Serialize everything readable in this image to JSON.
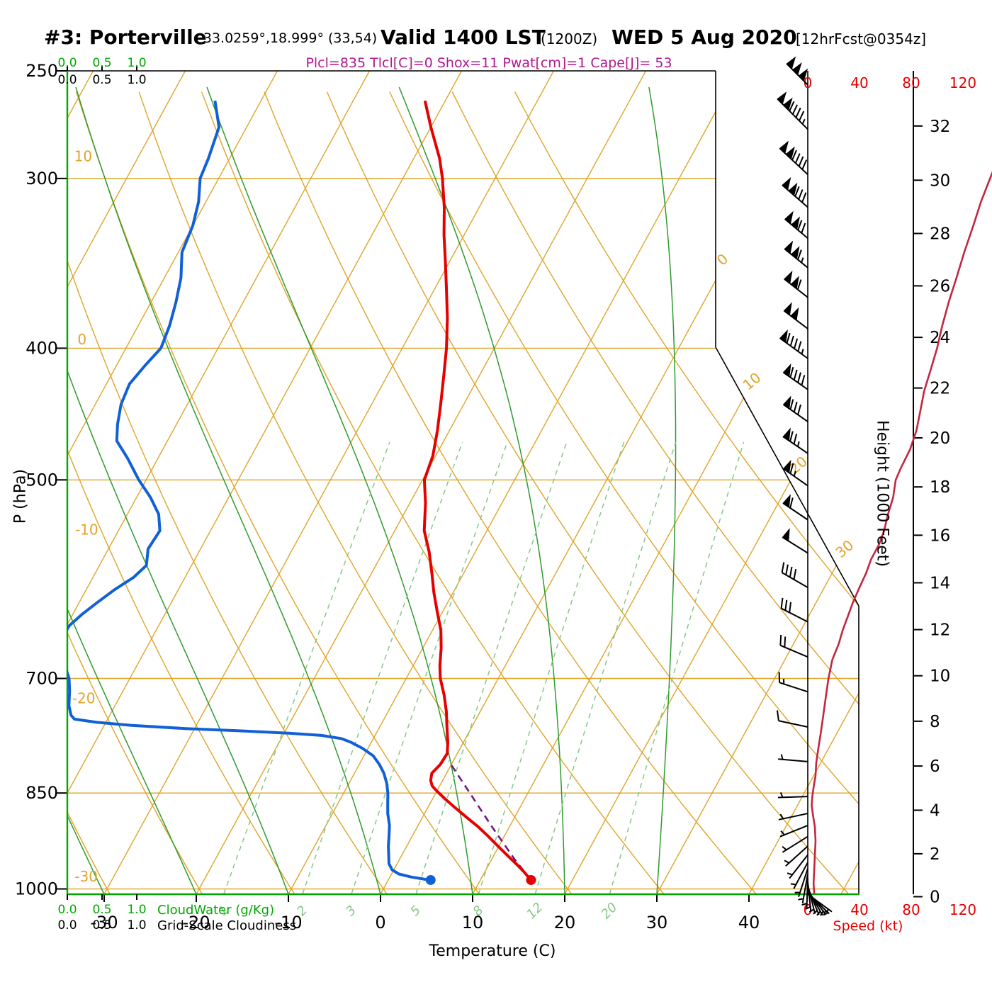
{
  "header": {
    "station": "#3: Porterville",
    "coordinates": "-33.0259°,18.999° (33,54)",
    "valid_time": "Valid 1400 LST",
    "valid_zulu": "(1200Z)",
    "valid_date": "WED 5 Aug 2020",
    "forecast_tag": "[12hrFcst@0354z]",
    "stats_line": "Plcl=835 Tlcl[C]=0 Shox=11 Pwat[cm]=1 Cape[J]= 53"
  },
  "axes": {
    "pressure_title": "P (hPa)",
    "temperature_title": "Temperature (C)",
    "height_title": "Height (1000 Feet)",
    "speed_title": "Speed (kt)",
    "cloudwater_title": "CloudWater (g/Kg)",
    "cloudiness_title": "Grid-Scale Cloudiness",
    "cloud_scale": [
      "0.0",
      "0.5",
      "1.0"
    ]
  },
  "colors": {
    "grid_orange": "#DFA42A",
    "moist_green": "#2E9B2E",
    "mixing_green": "#86C886",
    "axis_green": "#00A800",
    "temp_red": "#E60000",
    "dewpoint_blue": "#1160D8",
    "speed_crimson": "#C22741",
    "parcel_purple": "#701C7E",
    "stats_magenta": "#B01890",
    "speed_label_red": "#E60000",
    "black": "#000000"
  },
  "chart_data": {
    "type": "skewt-log-p",
    "pressure_ticks_hpa": [
      250,
      300,
      400,
      500,
      700,
      850,
      1000
    ],
    "temperature_ticks_c": [
      -30,
      -20,
      -10,
      0,
      10,
      20,
      30,
      40
    ],
    "height_ticks_kft": [
      0,
      2,
      4,
      6,
      8,
      10,
      12,
      14,
      16,
      18,
      20,
      22,
      24,
      26,
      28,
      30,
      32
    ],
    "speed_ticks_kt": [
      0,
      40,
      80,
      120
    ],
    "isotherm_grid_c": {
      "min": -90,
      "max": 50,
      "step": 10
    },
    "dry_adiabat_grid_c": {
      "min": -30,
      "max": 80,
      "step": 10
    },
    "dry_adiabat_labels_c": [
      10,
      0,
      -10,
      -20,
      -30
    ],
    "isotherm_edge_labels_c": [
      0,
      10,
      20,
      30
    ],
    "moist_adiabat_surface_temps_c": [
      -30,
      -20,
      -10,
      0,
      10,
      20,
      30
    ],
    "mixing_ratio_lines_g_kg": [
      1,
      2,
      3,
      5,
      8,
      12,
      20
    ],
    "cloud_water_profile_g_kg": [
      [
        1009,
        0
      ],
      [
        250,
        0
      ]
    ],
    "temperature_profile_p_t": [
      [
        263,
        -42.2
      ],
      [
        275,
        -40.0
      ],
      [
        290,
        -37.2
      ],
      [
        300,
        -35.7
      ],
      [
        315,
        -33.8
      ],
      [
        330,
        -32.2
      ],
      [
        345,
        -30.5
      ],
      [
        360,
        -28.9
      ],
      [
        380,
        -26.9
      ],
      [
        400,
        -25.2
      ],
      [
        420,
        -23.8
      ],
      [
        440,
        -22.5
      ],
      [
        460,
        -21.3
      ],
      [
        480,
        -20.3
      ],
      [
        500,
        -19.8
      ],
      [
        520,
        -18.3
      ],
      [
        545,
        -16.8
      ],
      [
        565,
        -15.0
      ],
      [
        585,
        -13.5
      ],
      [
        605,
        -12.1
      ],
      [
        625,
        -10.6
      ],
      [
        645,
        -9.1
      ],
      [
        665,
        -8.0
      ],
      [
        685,
        -7.1
      ],
      [
        700,
        -6.3
      ],
      [
        720,
        -4.9
      ],
      [
        740,
        -3.7
      ],
      [
        760,
        -2.7
      ],
      [
        780,
        -1.7
      ],
      [
        795,
        -1.1
      ],
      [
        810,
        -1.2
      ],
      [
        822,
        -1.6
      ],
      [
        832,
        -1.3
      ],
      [
        840,
        -0.8
      ],
      [
        848,
        0.1
      ],
      [
        858,
        1.3
      ],
      [
        870,
        2.8
      ],
      [
        885,
        4.7
      ],
      [
        900,
        6.6
      ],
      [
        915,
        8.3
      ],
      [
        930,
        9.9
      ],
      [
        945,
        11.5
      ],
      [
        960,
        13.1
      ],
      [
        972,
        14.3
      ],
      [
        985,
        15.5
      ]
    ],
    "dewpoint_profile_p_t": [
      [
        263,
        -65.0
      ],
      [
        275,
        -63.0
      ],
      [
        290,
        -62.3
      ],
      [
        300,
        -62.0
      ],
      [
        312,
        -60.8
      ],
      [
        325,
        -60.0
      ],
      [
        340,
        -59.6
      ],
      [
        355,
        -58.2
      ],
      [
        370,
        -57.3
      ],
      [
        385,
        -56.6
      ],
      [
        400,
        -56.2
      ],
      [
        412,
        -56.9
      ],
      [
        425,
        -57.5
      ],
      [
        440,
        -57.2
      ],
      [
        455,
        -56.4
      ],
      [
        468,
        -55.5
      ],
      [
        482,
        -53.3
      ],
      [
        500,
        -50.8
      ],
      [
        515,
        -48.5
      ],
      [
        530,
        -46.6
      ],
      [
        545,
        -45.5
      ],
      [
        562,
        -45.7
      ],
      [
        578,
        -44.9
      ],
      [
        590,
        -45.6
      ],
      [
        602,
        -46.9
      ],
      [
        615,
        -48.0
      ],
      [
        628,
        -49.0
      ],
      [
        640,
        -49.7
      ],
      [
        655,
        -49.8
      ],
      [
        670,
        -48.9
      ],
      [
        685,
        -47.8
      ],
      [
        700,
        -46.6
      ],
      [
        715,
        -45.8
      ],
      [
        733,
        -45.0
      ],
      [
        745,
        -44.2
      ],
      [
        750,
        -43.6
      ],
      [
        754,
        -41.0
      ],
      [
        758,
        -37.0
      ],
      [
        762,
        -31.0
      ],
      [
        765,
        -25.0
      ],
      [
        768,
        -19.5
      ],
      [
        771,
        -15.8
      ],
      [
        775,
        -13.5
      ],
      [
        780,
        -12.2
      ],
      [
        788,
        -10.6
      ],
      [
        798,
        -9.0
      ],
      [
        810,
        -7.8
      ],
      [
        822,
        -6.8
      ],
      [
        836,
        -5.9
      ],
      [
        850,
        -5.2
      ],
      [
        865,
        -4.6
      ],
      [
        880,
        -4.0
      ],
      [
        898,
        -3.1
      ],
      [
        915,
        -2.5
      ],
      [
        930,
        -2.0
      ],
      [
        945,
        -1.4
      ],
      [
        958,
        -0.9
      ],
      [
        968,
        -0.2
      ],
      [
        975,
        0.8
      ],
      [
        980,
        2.3
      ],
      [
        985,
        4.5
      ]
    ],
    "parcel_path_p_t": [
      [
        985,
        15.5
      ],
      [
        950,
        12.4
      ],
      [
        900,
        8.1
      ],
      [
        850,
        3.7
      ],
      [
        805,
        -0.5
      ]
    ],
    "surface_temperature_point": [
      985,
      15.5
    ],
    "surface_dewpoint_point": [
      985,
      4.6
    ],
    "wind_speed_profile_p_kt": [
      [
        295,
        144
      ],
      [
        300,
        141
      ],
      [
        312,
        134
      ],
      [
        325,
        128
      ],
      [
        340,
        121
      ],
      [
        355,
        115
      ],
      [
        370,
        109
      ],
      [
        385,
        104
      ],
      [
        400,
        100
      ],
      [
        415,
        95
      ],
      [
        430,
        90
      ],
      [
        445,
        87
      ],
      [
        460,
        84
      ],
      [
        475,
        79
      ],
      [
        490,
        72
      ],
      [
        500,
        68
      ],
      [
        515,
        66
      ],
      [
        530,
        62
      ],
      [
        545,
        59
      ],
      [
        558,
        55
      ],
      [
        572,
        49
      ],
      [
        586,
        45
      ],
      [
        600,
        40
      ],
      [
        615,
        35
      ],
      [
        630,
        31
      ],
      [
        645,
        27
      ],
      [
        660,
        24
      ],
      [
        678,
        19
      ],
      [
        700,
        16
      ],
      [
        722,
        14
      ],
      [
        745,
        12
      ],
      [
        768,
        10
      ],
      [
        790,
        8
      ],
      [
        808,
        6.5
      ],
      [
        825,
        6
      ],
      [
        842,
        4.5
      ],
      [
        855,
        3.5
      ],
      [
        868,
        3
      ],
      [
        882,
        4
      ],
      [
        900,
        5.5
      ],
      [
        922,
        6
      ],
      [
        945,
        5.5
      ],
      [
        968,
        5
      ],
      [
        990,
        4.5
      ],
      [
        1009,
        5
      ]
    ],
    "wind_barbs_p_kt_dir": [
      [
        256,
        150,
        315
      ],
      [
        276,
        145,
        315
      ],
      [
        298,
        140,
        313
      ],
      [
        315,
        130,
        311
      ],
      [
        332,
        122,
        310
      ],
      [
        349,
        115,
        309
      ],
      [
        367,
        108,
        308
      ],
      [
        387,
        102,
        307
      ],
      [
        407,
        96,
        306
      ],
      [
        429,
        90,
        305
      ],
      [
        453,
        82,
        305
      ],
      [
        478,
        74,
        304
      ],
      [
        505,
        66,
        305
      ],
      [
        535,
        61,
        304
      ],
      [
        566,
        52,
        302
      ],
      [
        600,
        40,
        300
      ],
      [
        636,
        29,
        297
      ],
      [
        675,
        21,
        293
      ],
      [
        716,
        15,
        288
      ],
      [
        760,
        11,
        282
      ],
      [
        806,
        7,
        275
      ],
      [
        855,
        4,
        268
      ],
      [
        880,
        4,
        258
      ],
      [
        898,
        5,
        248
      ],
      [
        915,
        5,
        238
      ],
      [
        930,
        4,
        228
      ],
      [
        944,
        5,
        218
      ],
      [
        956,
        5,
        208
      ],
      [
        966,
        4,
        198
      ],
      [
        975,
        3,
        190
      ],
      [
        982,
        3,
        182
      ],
      [
        988,
        3,
        174
      ],
      [
        993,
        3,
        166
      ],
      [
        997,
        3,
        158
      ],
      [
        1001,
        3,
        150
      ],
      [
        1004,
        2,
        142
      ],
      [
        1007,
        2,
        134
      ],
      [
        1009,
        3,
        126
      ]
    ]
  }
}
